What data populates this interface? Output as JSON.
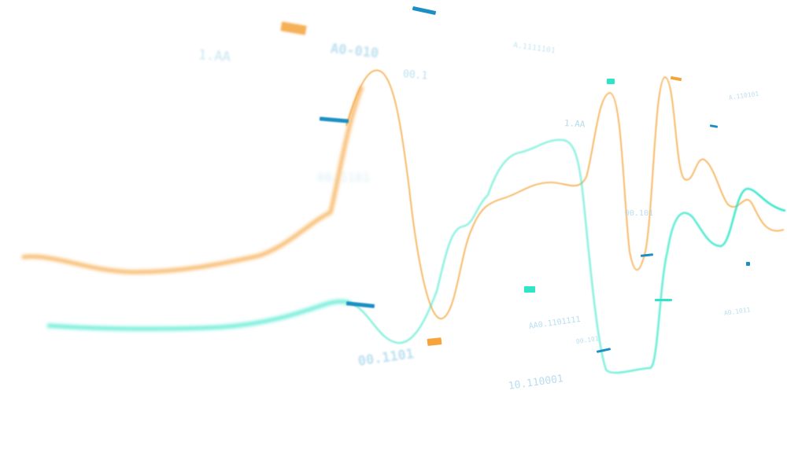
{
  "colors": {
    "orange": "#f5a33a",
    "teal": "#2ee6c7",
    "blue": "#1b8fc2",
    "label": "#9fd3ea",
    "background": "#ffffff"
  },
  "floating_labels": [
    "1.AA",
    "A0-010",
    "00.1",
    "A.1111101",
    "00.1101",
    "00.1101",
    "1.AA",
    "A.110101",
    "00.101",
    "AA0.1101111",
    "00.101",
    "10.110001",
    "A0.1011"
  ]
}
